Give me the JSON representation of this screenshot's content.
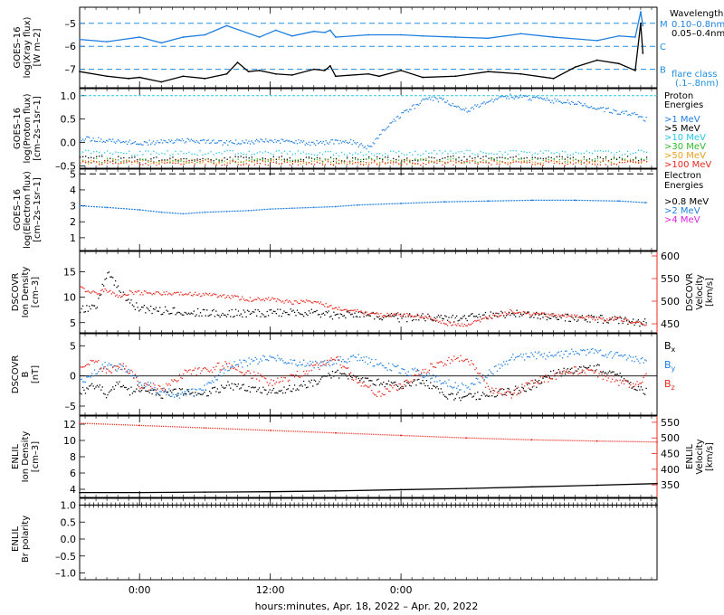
{
  "colors": {
    "black": "#000000",
    "blue": "#1f7fe0",
    "cyan": "#22c8e8",
    "green": "#2eb82e",
    "orange": "#e8a020",
    "red": "#e8281e",
    "magenta": "#e020e0",
    "dash_blue": "#1f8fe0"
  },
  "x_axis": {
    "label": "hours:minutes, Apr. 18, 2022 – Apr. 20, 2022",
    "ticks": [
      "0:00",
      "12:00",
      "0:00"
    ]
  },
  "chart_data": [
    {
      "type": "line",
      "panel": "goes_xray",
      "ylabel": "GOES–16 log(Xray flux) [W m–2]",
      "ylim": [
        -7.8,
        -4.3
      ],
      "yticks": [
        -5,
        -6,
        -7
      ],
      "ytick_labels": [
        "–5",
        "–6",
        "–7"
      ],
      "right_title": "Wavelength",
      "legend": [
        {
          "name": "0.10–0.8nm",
          "color_key": "blue"
        },
        {
          "name": "0.05–0.4nm",
          "color_key": "black"
        }
      ],
      "flare_levels": [
        {
          "label": "M",
          "value": -5
        },
        {
          "label": "C",
          "value": -6
        },
        {
          "label": "B",
          "value": -7
        }
      ],
      "flare_note": [
        "flare class",
        "(.1–.8nm)"
      ],
      "series": [
        {
          "name": "0.10–0.8nm",
          "color_key": "blue",
          "x": [
            -5.5,
            -3,
            0,
            2,
            4,
            6,
            8,
            11,
            12.5,
            14,
            16,
            17,
            17.5,
            18,
            21,
            24,
            26,
            29,
            32,
            35,
            38,
            42,
            44,
            45.5,
            46,
            46.2
          ],
          "y": [
            -5.7,
            -5.8,
            -5.6,
            -5.85,
            -5.6,
            -5.5,
            -5.1,
            -5.6,
            -5.3,
            -5.55,
            -5.35,
            -5.4,
            -5.3,
            -5.6,
            -5.5,
            -5.5,
            -5.55,
            -5.6,
            -5.65,
            -5.45,
            -5.6,
            -5.75,
            -5.55,
            -5.6,
            -4.5,
            -5.1
          ]
        },
        {
          "name": "0.05–0.4nm",
          "color_key": "black",
          "x": [
            -5.5,
            -3,
            -1,
            0,
            2,
            4,
            6,
            8,
            9,
            10,
            11,
            12.5,
            14,
            16,
            17,
            17.5,
            18,
            21,
            22,
            24,
            26,
            29,
            32,
            35,
            38,
            40,
            42,
            44,
            45.5,
            46,
            46.2
          ],
          "y": [
            -7.1,
            -7.3,
            -7.4,
            -7.35,
            -7.55,
            -7.3,
            -7.4,
            -7.2,
            -6.7,
            -7.1,
            -7.05,
            -7.2,
            -7.25,
            -7.0,
            -7.05,
            -6.85,
            -7.3,
            -7.2,
            -7.3,
            -7.05,
            -7.35,
            -7.3,
            -7.1,
            -7.2,
            -7.4,
            -6.9,
            -6.6,
            -6.75,
            -7.05,
            -5.0,
            -6.3
          ]
        }
      ]
    },
    {
      "type": "scatter",
      "panel": "goes_proton",
      "ylabel": "GOES–16 log(Proton flux) [cm–2s–1sr–1]",
      "ylim": [
        -0.55,
        1.15
      ],
      "yticks": [
        1.0,
        0.5,
        0.0,
        -0.5
      ],
      "ytick_labels": [
        "1.0",
        "0.5",
        "0.0",
        "–0.5"
      ],
      "right_title": [
        "Proton",
        "Energies"
      ],
      "reference_line": 1.0,
      "legend": [
        {
          "name": ">1 MeV",
          "color_key": "blue"
        },
        {
          "name": ">5 MeV",
          "color_key": "black"
        },
        {
          "name": ">10 MeV",
          "color_key": "cyan"
        },
        {
          "name": ">30 MeV",
          "color_key": "green"
        },
        {
          "name": ">50 MeV",
          "color_key": "orange"
        },
        {
          "name": ">100 MeV",
          "color_key": "red"
        }
      ],
      "series": [
        {
          "name": ">1 MeV",
          "color_key": "blue",
          "x": [
            -5.5,
            -3,
            0,
            4,
            8,
            12,
            16,
            19,
            21,
            23,
            25,
            26,
            27,
            28,
            30,
            32,
            34,
            36,
            38,
            40,
            42,
            44,
            45.5,
            46.5
          ],
          "y": [
            0.1,
            0.05,
            0.0,
            0.05,
            0.0,
            0.05,
            0.0,
            0.05,
            -0.1,
            0.45,
            0.75,
            0.9,
            0.95,
            0.9,
            0.7,
            0.9,
            1.0,
            0.95,
            0.9,
            0.85,
            0.75,
            0.65,
            0.6,
            0.5
          ]
        },
        {
          "name": ">5 MeV",
          "color_key": "black",
          "x": [
            -5.5,
            0,
            10,
            20,
            30,
            40,
            46.5
          ],
          "y": [
            -0.32,
            -0.35,
            -0.33,
            -0.35,
            -0.32,
            -0.34,
            -0.33
          ]
        },
        {
          "name": ">10 MeV",
          "color_key": "cyan",
          "x": [
            -5.5,
            0,
            10,
            20,
            30,
            40,
            46.5
          ],
          "y": [
            -0.2,
            -0.22,
            -0.2,
            -0.23,
            -0.2,
            -0.21,
            -0.2
          ]
        },
        {
          "name": ">30 MeV",
          "color_key": "green",
          "x": [
            -5.5,
            0,
            10,
            20,
            30,
            40,
            46.5
          ],
          "y": [
            -0.37,
            -0.38,
            -0.37,
            -0.38,
            -0.37,
            -0.38,
            -0.37
          ]
        },
        {
          "name": ">50 MeV",
          "color_key": "orange",
          "x": [
            -5.5,
            0,
            10,
            20,
            30,
            40,
            46.5
          ],
          "y": [
            -0.4,
            -0.41,
            -0.4,
            -0.41,
            -0.4,
            -0.41,
            -0.4
          ]
        },
        {
          "name": ">100 MeV",
          "color_key": "red",
          "x": [
            -5.5,
            0,
            10,
            20,
            30,
            40,
            46.5
          ],
          "y": [
            -0.42,
            -0.43,
            -0.42,
            -0.43,
            -0.42,
            -0.43,
            -0.42
          ]
        }
      ]
    },
    {
      "type": "line",
      "panel": "goes_electron",
      "ylabel": "GOES–16 log(Electron flux) [cm–2s–1sr–1]",
      "ylim": [
        0.2,
        5.3
      ],
      "yticks": [
        5,
        4,
        3,
        2,
        1
      ],
      "ytick_labels": [
        "5",
        "4",
        "3",
        "2",
        "1"
      ],
      "right_title": [
        "Electron",
        "Energies"
      ],
      "reference_line": 5.0,
      "legend": [
        {
          "name": ">0.8 MeV",
          "color_key": "black"
        },
        {
          "name": ">2 MeV",
          "color_key": "blue"
        },
        {
          "name": ">4 MeV",
          "color_key": "magenta"
        }
      ],
      "series": [
        {
          "name": ">2 MeV",
          "color_key": "blue",
          "x": [
            -5.5,
            -3,
            0,
            2,
            4,
            6,
            8,
            10,
            12,
            14,
            16,
            18,
            20,
            24,
            28,
            32,
            36,
            40,
            44,
            46.5
          ],
          "y": [
            3.0,
            2.9,
            2.75,
            2.6,
            2.5,
            2.6,
            2.65,
            2.7,
            2.8,
            2.85,
            2.9,
            2.95,
            3.05,
            3.15,
            3.25,
            3.3,
            3.35,
            3.35,
            3.3,
            3.2
          ]
        }
      ]
    },
    {
      "type": "scatter",
      "panel": "dscovr_density_velocity",
      "ylabel": "DSCOVR Ion Density [cm–3]",
      "ylim": [
        3,
        19
      ],
      "yticks": [
        15,
        10,
        5
      ],
      "ytick_labels": [
        "15",
        "10",
        "5"
      ],
      "y2label": "DSCOVR Velocity [km/s]",
      "y2lim": [
        430,
        610
      ],
      "y2ticks": [
        600,
        550,
        500,
        450
      ],
      "y2tick_labels": [
        "600",
        "550",
        "500",
        "450"
      ],
      "series": [
        {
          "name": "Ion Density",
          "axis": "left",
          "color_key": "black",
          "x": [
            -5.5,
            -4,
            -3,
            -2,
            -1,
            0,
            2,
            4,
            6,
            8,
            10,
            12,
            14,
            16,
            18,
            20,
            22,
            24,
            26,
            28,
            30,
            32,
            34,
            36,
            38,
            40,
            42,
            44,
            45.5,
            46.5
          ],
          "y": [
            7.5,
            8.5,
            15,
            12,
            9,
            7.8,
            7.5,
            7.2,
            7.0,
            7.0,
            6.8,
            7.0,
            7.2,
            7.0,
            6.5,
            6.8,
            6.5,
            6.0,
            6.2,
            5.8,
            6.2,
            6.5,
            6.8,
            6.5,
            6.2,
            6.0,
            5.8,
            5.5,
            5.2,
            5.0
          ]
        },
        {
          "name": "Velocity",
          "axis": "right",
          "color_key": "red",
          "x": [
            -5.5,
            -4,
            -3,
            -2,
            -1,
            0,
            2,
            4,
            6,
            8,
            10,
            12,
            14,
            16,
            18,
            20,
            22,
            24,
            26,
            28,
            30,
            32,
            34,
            36,
            38,
            40,
            42,
            44,
            45.5,
            46.5
          ],
          "y": [
            530,
            520,
            525,
            510,
            520,
            520,
            518,
            518,
            515,
            512,
            505,
            505,
            498,
            500,
            485,
            478,
            470,
            472,
            468,
            452,
            450,
            465,
            478,
            472,
            470,
            468,
            462,
            462,
            455,
            448
          ]
        }
      ]
    },
    {
      "type": "scatter",
      "panel": "dscovr_b",
      "ylabel": "DSCOVR B [nT]",
      "ylim": [
        -6.5,
        7
      ],
      "yticks": [
        5,
        0,
        -5
      ],
      "ytick_labels": [
        "5",
        "0",
        "–5"
      ],
      "zero_line": true,
      "legend": [
        {
          "name": "Bx",
          "color_key": "black"
        },
        {
          "name": "By",
          "color_key": "blue"
        },
        {
          "name": "Bz",
          "color_key": "red"
        }
      ],
      "series": [
        {
          "name": "Bx",
          "color_key": "black",
          "x": [
            -5.5,
            -4,
            -3,
            -2,
            -1,
            0,
            2,
            4,
            6,
            8,
            10,
            12,
            14,
            16,
            18,
            20,
            22,
            24,
            26,
            28,
            30,
            32,
            34,
            36,
            38,
            40,
            42,
            44,
            45.5,
            46.5
          ],
          "y": [
            -2.5,
            -1.5,
            -3.0,
            -1.0,
            -2.5,
            -2.0,
            -3.0,
            -2.5,
            -2.8,
            -1.5,
            -2.0,
            -2.5,
            -1.8,
            -1.0,
            0.5,
            -0.5,
            -1.0,
            -1.5,
            -1.0,
            -3.0,
            -3.5,
            -3.0,
            -2.5,
            -1.5,
            0.5,
            1.0,
            1.5,
            0.0,
            -2.0,
            -2.5
          ]
        },
        {
          "name": "By",
          "color_key": "blue",
          "x": [
            -5.5,
            -4,
            -3,
            -2,
            -1,
            0,
            2,
            4,
            6,
            8,
            10,
            12,
            14,
            16,
            18,
            20,
            22,
            24,
            26,
            28,
            30,
            32,
            34,
            36,
            38,
            40,
            42,
            44,
            45.5,
            46.5
          ],
          "y": [
            -1.0,
            1.0,
            2.0,
            1.5,
            1.0,
            -1.0,
            -2.5,
            -3.0,
            -2.0,
            1.5,
            2.5,
            3.0,
            2.5,
            2.0,
            2.5,
            3.0,
            2.0,
            1.0,
            0.5,
            -1.0,
            -2.0,
            0.5,
            3.0,
            3.5,
            3.5,
            4.0,
            4.0,
            3.5,
            3.0,
            2.5
          ]
        },
        {
          "name": "Bz",
          "color_key": "red",
          "x": [
            -5.5,
            -4,
            -3,
            -2,
            -1,
            0,
            2,
            4,
            6,
            8,
            10,
            12,
            14,
            16,
            18,
            20,
            22,
            24,
            26,
            28,
            30,
            32,
            34,
            36,
            38,
            40,
            42,
            44,
            45.5,
            46.5
          ],
          "y": [
            1.5,
            2.5,
            0.5,
            2.0,
            1.0,
            -1.5,
            -2.0,
            0.5,
            1.0,
            2.0,
            0.5,
            -1.0,
            0.0,
            1.5,
            3.0,
            -1.0,
            -3.0,
            -1.5,
            1.0,
            2.5,
            3.0,
            -2.0,
            -3.0,
            -1.0,
            0.0,
            1.0,
            0.5,
            -1.0,
            -1.5,
            0.5
          ]
        }
      ]
    },
    {
      "type": "line",
      "panel": "enlil_density_velocity",
      "ylabel": "ENLIL Ion Density [cm–3]",
      "ylim": [
        3,
        13
      ],
      "yticks": [
        12,
        10,
        8,
        6,
        4
      ],
      "ytick_labels": [
        "12",
        "10",
        "8",
        "6",
        "4"
      ],
      "y2label": "ENLIL Velocity [km/s]",
      "y2lim": [
        310,
        570
      ],
      "y2ticks": [
        550,
        500,
        450,
        400,
        350
      ],
      "y2tick_labels": [
        "550",
        "500",
        "450",
        "400",
        "350"
      ],
      "series": [
        {
          "name": "Ion Density",
          "axis": "left",
          "color_key": "black",
          "x": [
            -5.5,
            0,
            6,
            12,
            18,
            24,
            30,
            36,
            42,
            47.5
          ],
          "y": [
            3.6,
            3.6,
            3.65,
            3.7,
            3.8,
            3.95,
            4.1,
            4.3,
            4.5,
            4.7
          ]
        },
        {
          "name": "Velocity",
          "axis": "right",
          "color_key": "red",
          "x": [
            -5.5,
            0,
            6,
            12,
            18,
            24,
            30,
            36,
            42,
            47.5
          ],
          "y": [
            547,
            540,
            532,
            524,
            516,
            508,
            500,
            494,
            490,
            487
          ]
        }
      ]
    },
    {
      "type": "line",
      "panel": "enlil_polarity",
      "ylabel": "ENLIL Br polarity",
      "ylim": [
        -1.2,
        1.2
      ],
      "yticks": [
        1.0,
        0.5,
        0.0,
        -0.5,
        -1.0
      ],
      "ytick_labels": [
        "1.0",
        "0.5",
        "0.0",
        "–0.5",
        "–1.0"
      ],
      "series": [
        {
          "name": "Br polarity",
          "color_key": "black",
          "x": [
            -5.5,
            0,
            12,
            24,
            36,
            47.5
          ],
          "y": [
            1.0,
            1.0,
            1.0,
            1.0,
            1.0,
            1.0
          ]
        }
      ]
    }
  ]
}
